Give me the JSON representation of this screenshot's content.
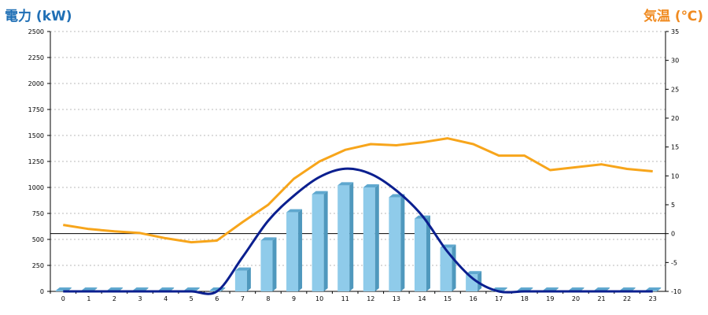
{
  "chart_data": {
    "type": "bar",
    "left_axis_label": "電力 (kW)",
    "right_axis_label": "気温 (℃)",
    "categories": [
      "0",
      "1",
      "2",
      "3",
      "4",
      "5",
      "6",
      "7",
      "8",
      "9",
      "10",
      "11",
      "12",
      "13",
      "14",
      "15",
      "16",
      "17",
      "18",
      "19",
      "20",
      "21",
      "22",
      "23"
    ],
    "y_left_range": [
      0,
      2500
    ],
    "y_left_ticks": [
      "0",
      "250",
      "500",
      "750",
      "1000",
      "1250",
      "1500",
      "1750",
      "2000",
      "2250",
      "2500"
    ],
    "y_right_range": [
      -10,
      35
    ],
    "y_right_ticks": [
      "-10",
      "-5",
      "0",
      "5",
      "10",
      "15",
      "20",
      "25",
      "30",
      "35"
    ],
    "grid": "horizontal-dotted",
    "series": [
      {
        "kind": "bar",
        "axis": "left",
        "color": "#8fcbea",
        "values": [
          0,
          0,
          0,
          0,
          0,
          0,
          0,
          200,
          490,
          760,
          935,
          1020,
          1000,
          905,
          700,
          420,
          165,
          0,
          0,
          0,
          0,
          0,
          0,
          0
        ]
      },
      {
        "kind": "line",
        "axis": "left",
        "color": "#0b1f8f",
        "values": [
          0,
          0,
          0,
          0,
          0,
          0,
          0,
          330,
          680,
          920,
          1100,
          1180,
          1130,
          970,
          730,
          380,
          120,
          0,
          0,
          0,
          0,
          0,
          0,
          0
        ]
      },
      {
        "kind": "line",
        "axis": "right",
        "color": "#f7a51b",
        "values": [
          1.5,
          0.8,
          0.4,
          0.1,
          -0.8,
          -1.5,
          -1.2,
          2.0,
          5.0,
          9.5,
          12.5,
          14.5,
          15.5,
          15.3,
          15.8,
          16.5,
          15.5,
          13.5,
          13.5,
          11.0,
          11.5,
          12.0,
          11.2,
          10.8
        ]
      }
    ]
  }
}
